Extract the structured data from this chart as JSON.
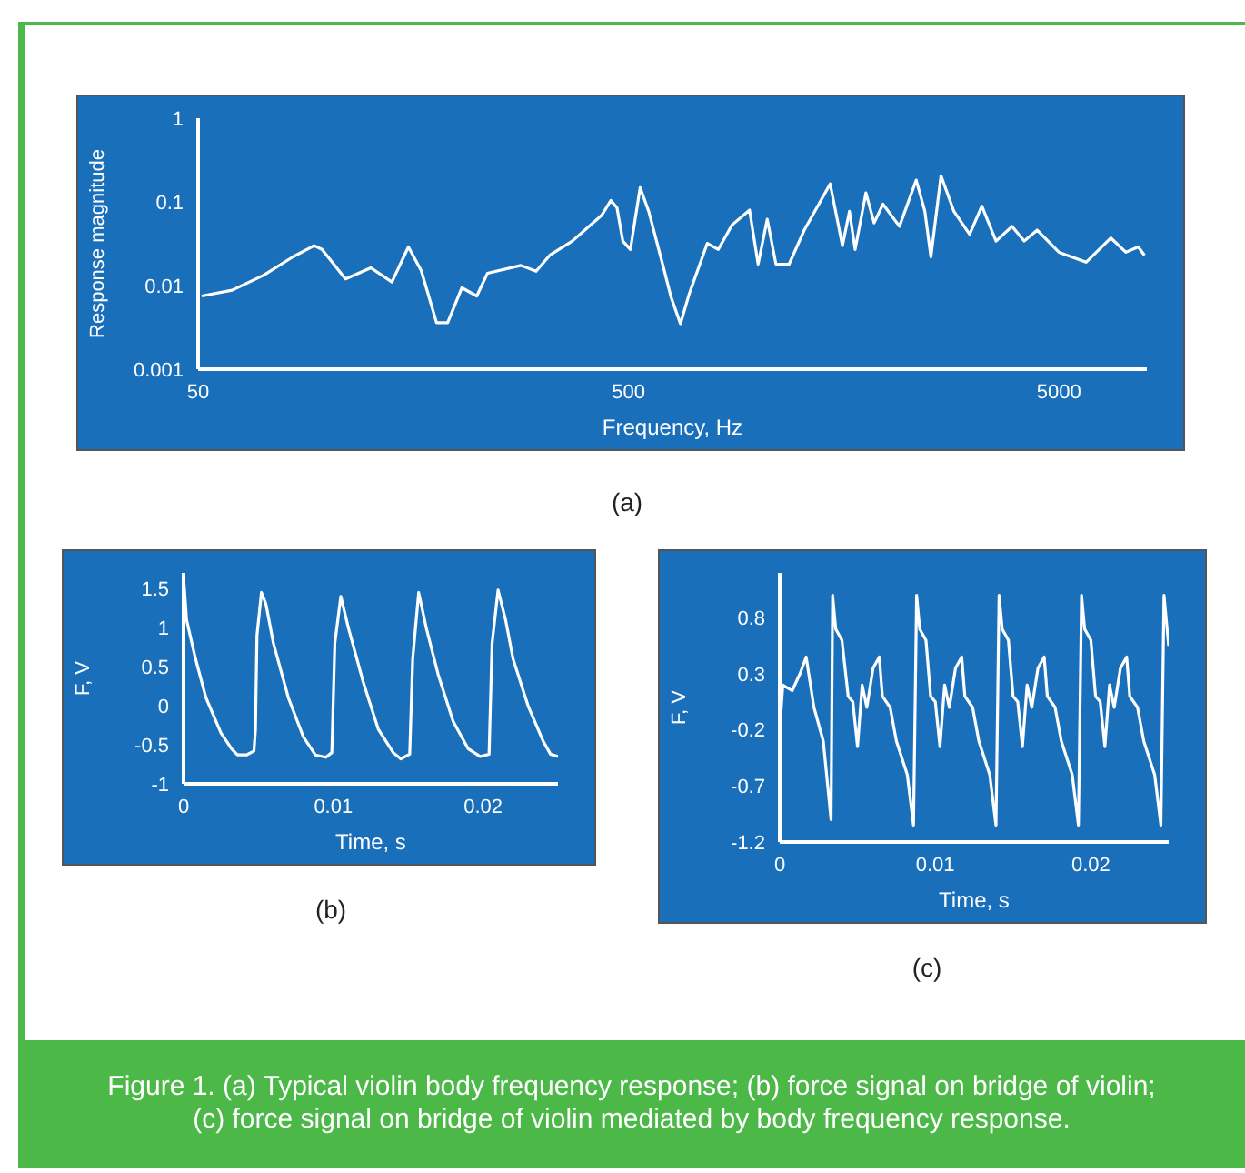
{
  "chart_data": [
    {
      "type": "line",
      "title": "(a)",
      "xlabel": "Frequency, Hz",
      "ylabel": "Response magnitude",
      "log": "xy",
      "xlim": [
        50,
        8000
      ],
      "xticks": [
        50,
        500,
        5000
      ],
      "ylim": [
        0.001,
        1
      ],
      "yticks": [
        0.001,
        0.01,
        0.1,
        1
      ],
      "annotations": [
        "Figure 1. (a) Typical violin body frequency response; (b) force signal on bridge of violin; (c) force signal on bridge of violin mediated by body frequency response."
      ],
      "x": [
        51,
        60,
        71,
        83,
        93,
        97,
        110,
        126,
        141,
        154,
        165,
        179,
        190,
        205,
        222,
        235,
        281,
        305,
        328,
        370,
        433,
        455,
        470,
        485,
        505,
        532,
        557,
        600,
        628,
        660,
        692,
        762,
        808,
        870,
        955,
        1000,
        1050,
        1100,
        1180,
        1280,
        1470,
        1570,
        1630,
        1680,
        1780,
        1860,
        1950,
        2130,
        2330,
        2440,
        2520,
        2660,
        2850,
        3100,
        3310,
        3570,
        3890,
        4150,
        4450,
        5000,
        5780,
        6600,
        7150,
        7640,
        7900
      ],
      "series": [
        {
          "color": "#ffffff",
          "values": [
            0.0075,
            0.0088,
            0.0133,
            0.022,
            0.03,
            0.027,
            0.012,
            0.0163,
            0.011,
            0.029,
            0.015,
            0.0036,
            0.0036,
            0.0094,
            0.0075,
            0.014,
            0.0174,
            0.0148,
            0.023,
            0.034,
            0.069,
            0.104,
            0.085,
            0.034,
            0.027,
            0.148,
            0.077,
            0.018,
            0.0072,
            0.0035,
            0.008,
            0.032,
            0.027,
            0.053,
            0.08,
            0.018,
            0.062,
            0.018,
            0.018,
            0.046,
            0.164,
            0.03,
            0.077,
            0.027,
            0.128,
            0.056,
            0.094,
            0.051,
            0.182,
            0.077,
            0.022,
            0.205,
            0.077,
            0.041,
            0.089,
            0.034,
            0.051,
            0.034,
            0.046,
            0.025,
            0.019,
            0.037,
            0.025,
            0.029,
            0.023
          ]
        }
      ]
    },
    {
      "type": "line",
      "title": "(b)",
      "xlabel": "Time, s",
      "ylabel": "F, V",
      "xlim": [
        0,
        0.025
      ],
      "xticks": [
        0,
        0.01,
        0.02
      ],
      "ylim": [
        -1,
        1.7
      ],
      "yticks": [
        -1,
        -0.5,
        0,
        0.5,
        1,
        1.5
      ],
      "x": [
        0,
        0.0002,
        0.0008,
        0.0015,
        0.0025,
        0.0032,
        0.0036,
        0.0042,
        0.0047,
        0.0048,
        0.0049,
        0.0052,
        0.0055,
        0.006,
        0.007,
        0.008,
        0.0088,
        0.0095,
        0.0099,
        0.0101,
        0.0105,
        0.011,
        0.012,
        0.013,
        0.014,
        0.0145,
        0.0151,
        0.0153,
        0.0157,
        0.0162,
        0.017,
        0.018,
        0.019,
        0.0198,
        0.0204,
        0.0206,
        0.021,
        0.0215,
        0.022,
        0.023,
        0.024,
        0.0245,
        0.025
      ],
      "series": [
        {
          "color": "#ffffff",
          "values": [
            1.65,
            1.1,
            0.6,
            0.1,
            -0.35,
            -0.55,
            -0.63,
            -0.63,
            -0.58,
            -0.3,
            0.9,
            1.45,
            1.3,
            0.8,
            0.1,
            -0.4,
            -0.63,
            -0.66,
            -0.6,
            0.8,
            1.4,
            1.0,
            0.3,
            -0.3,
            -0.6,
            -0.68,
            -0.62,
            0.6,
            1.45,
            1.0,
            0.4,
            -0.2,
            -0.55,
            -0.65,
            -0.62,
            0.8,
            1.48,
            1.1,
            0.6,
            0.0,
            -0.45,
            -0.62,
            -0.65
          ]
        }
      ]
    },
    {
      "type": "line",
      "title": "(c)",
      "xlabel": "Time, s",
      "ylabel": "F, V",
      "xlim": [
        0,
        0.025
      ],
      "xticks": [
        0,
        0.01,
        0.02
      ],
      "ylim": [
        -1.2,
        1.2
      ],
      "yticks": [
        -1.2,
        -0.7,
        -0.2,
        0.3,
        0.8
      ],
      "x": [
        0,
        0.0002,
        0.0008,
        0.0013,
        0.0017,
        0.0022,
        0.0028,
        0.0033,
        0.0034,
        0.0036,
        0.004,
        0.0044,
        0.0047,
        0.005,
        0.0053,
        0.0056,
        0.006,
        0.0064,
        0.0066,
        0.0071,
        0.0075,
        0.0082,
        0.0086,
        0.0088,
        0.009,
        0.0094,
        0.0097,
        0.01,
        0.0103,
        0.0106,
        0.0109,
        0.0113,
        0.0117,
        0.0119,
        0.0124,
        0.0128,
        0.0135,
        0.0139,
        0.0141,
        0.0143,
        0.0147,
        0.015,
        0.0153,
        0.0156,
        0.0159,
        0.0162,
        0.0166,
        0.017,
        0.0172,
        0.0177,
        0.0181,
        0.0188,
        0.0192,
        0.0194,
        0.0196,
        0.02,
        0.0203,
        0.0206,
        0.0209,
        0.0212,
        0.0215,
        0.0219,
        0.0223,
        0.0225,
        0.023,
        0.0234,
        0.0241,
        0.0245,
        0.0247,
        0.0249,
        0.025
      ],
      "series": [
        {
          "color": "#ffffff",
          "values": [
            -0.2,
            0.2,
            0.15,
            0.3,
            0.45,
            0.0,
            -0.3,
            -1.0,
            1.0,
            0.7,
            0.6,
            0.1,
            0.05,
            -0.35,
            0.2,
            0.0,
            0.35,
            0.45,
            0.1,
            0.0,
            -0.3,
            -0.6,
            -1.05,
            1.0,
            0.7,
            0.6,
            0.1,
            0.05,
            -0.35,
            0.2,
            0.0,
            0.35,
            0.45,
            0.1,
            0.0,
            -0.3,
            -0.6,
            -1.05,
            1.0,
            0.7,
            0.6,
            0.1,
            0.05,
            -0.35,
            0.2,
            0.0,
            0.35,
            0.45,
            0.1,
            0.0,
            -0.3,
            -0.6,
            -1.05,
            1.0,
            0.7,
            0.6,
            0.1,
            0.05,
            -0.35,
            0.2,
            0.0,
            0.35,
            0.45,
            0.1,
            0.0,
            -0.3,
            -0.6,
            -1.05,
            1.0,
            0.7,
            0.55
          ]
        }
      ]
    }
  ]
}
